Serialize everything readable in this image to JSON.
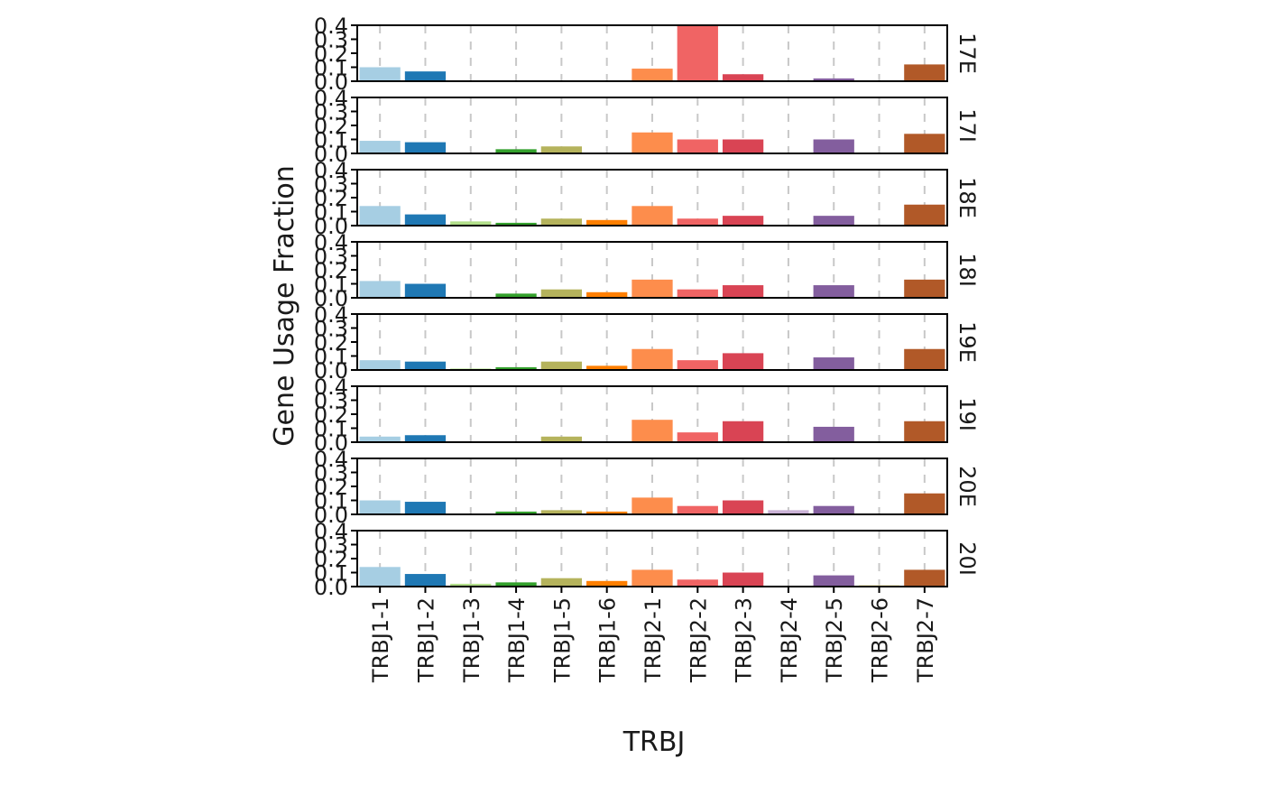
{
  "chart_data": {
    "type": "bar",
    "layout": "faceted-rows",
    "xlabel": "TRBJ",
    "ylabel": "Gene Usage Fraction",
    "ylim": [
      0,
      0.4
    ],
    "yticks": [
      "0.0",
      "0.1",
      "0.2",
      "0.3",
      "0.4"
    ],
    "grid": "vertical-dashed",
    "legend": "none",
    "categories": [
      "TRBJ1-1",
      "TRBJ1-2",
      "TRBJ1-3",
      "TRBJ1-4",
      "TRBJ1-5",
      "TRBJ1-6",
      "TRBJ2-1",
      "TRBJ2-2",
      "TRBJ2-3",
      "TRBJ2-4",
      "TRBJ2-5",
      "TRBJ2-6",
      "TRBJ2-7"
    ],
    "colors": [
      "#a6cee3",
      "#1f78b4",
      "#b2df8a",
      "#33a02c",
      "#b5b35c",
      "#ff7f00",
      "#fd8d4c",
      "#f06464",
      "#d94454",
      "#cab2d6",
      "#835e9e",
      "#f4e99d",
      "#b15928"
    ],
    "panels": [
      {
        "name": "17E",
        "values": [
          0.1,
          0.07,
          0,
          0,
          0,
          0,
          0.09,
          0.4,
          0.05,
          0,
          0.02,
          0,
          0.12
        ]
      },
      {
        "name": "17I",
        "values": [
          0.09,
          0.08,
          0,
          0.03,
          0.05,
          0,
          0.15,
          0.1,
          0.1,
          0,
          0.1,
          0,
          0.14
        ]
      },
      {
        "name": "18E",
        "values": [
          0.14,
          0.08,
          0.03,
          0.02,
          0.05,
          0.04,
          0.14,
          0.05,
          0.07,
          0,
          0.07,
          0,
          0.15
        ]
      },
      {
        "name": "18I",
        "values": [
          0.12,
          0.1,
          0,
          0.03,
          0.06,
          0.04,
          0.13,
          0.06,
          0.09,
          0,
          0.09,
          0,
          0.13
        ]
      },
      {
        "name": "19E",
        "values": [
          0.07,
          0.06,
          0.01,
          0.02,
          0.06,
          0.03,
          0.15,
          0.07,
          0.12,
          0,
          0.09,
          0,
          0.15
        ]
      },
      {
        "name": "19I",
        "values": [
          0.04,
          0.05,
          0,
          0,
          0.04,
          0,
          0.16,
          0.07,
          0.15,
          0,
          0.11,
          0,
          0.15
        ]
      },
      {
        "name": "20E",
        "values": [
          0.1,
          0.09,
          0,
          0.02,
          0.03,
          0.02,
          0.12,
          0.06,
          0.1,
          0.03,
          0.06,
          0,
          0.15
        ]
      },
      {
        "name": "20I",
        "values": [
          0.14,
          0.09,
          0.02,
          0.03,
          0.06,
          0.04,
          0.12,
          0.05,
          0.1,
          0,
          0.08,
          0.01,
          0.12
        ]
      }
    ]
  }
}
